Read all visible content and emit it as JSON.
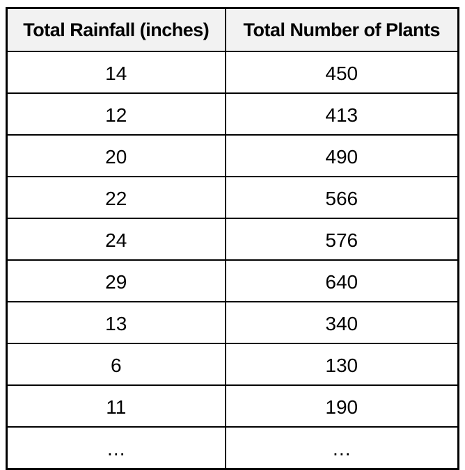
{
  "table": {
    "columns": [
      "Total Rainfall (inches)",
      "Total Number of Plants"
    ],
    "rows": [
      [
        "14",
        "450"
      ],
      [
        "12",
        "413"
      ],
      [
        "20",
        "490"
      ],
      [
        "22",
        "566"
      ],
      [
        "24",
        "576"
      ],
      [
        "29",
        "640"
      ],
      [
        "13",
        "340"
      ],
      [
        "6",
        "130"
      ],
      [
        "11",
        "190"
      ],
      [
        "…",
        "…"
      ]
    ]
  },
  "colors": {
    "header_background": "#f2f2f2",
    "border": "#000000",
    "text": "#000000",
    "page_background": "#ffffff"
  },
  "chart_data": {
    "type": "table",
    "title": "",
    "columns": [
      "Total Rainfall (inches)",
      "Total Number of Plants"
    ],
    "x": [
      14,
      12,
      20,
      22,
      24,
      29,
      13,
      6,
      11
    ],
    "y": [
      450,
      413,
      490,
      566,
      576,
      640,
      340,
      130,
      190
    ],
    "xlabel": "Total Rainfall (inches)",
    "ylabel": "Total Number of Plants",
    "note": "final row shows ellipsis (…) in both columns indicating more data"
  }
}
